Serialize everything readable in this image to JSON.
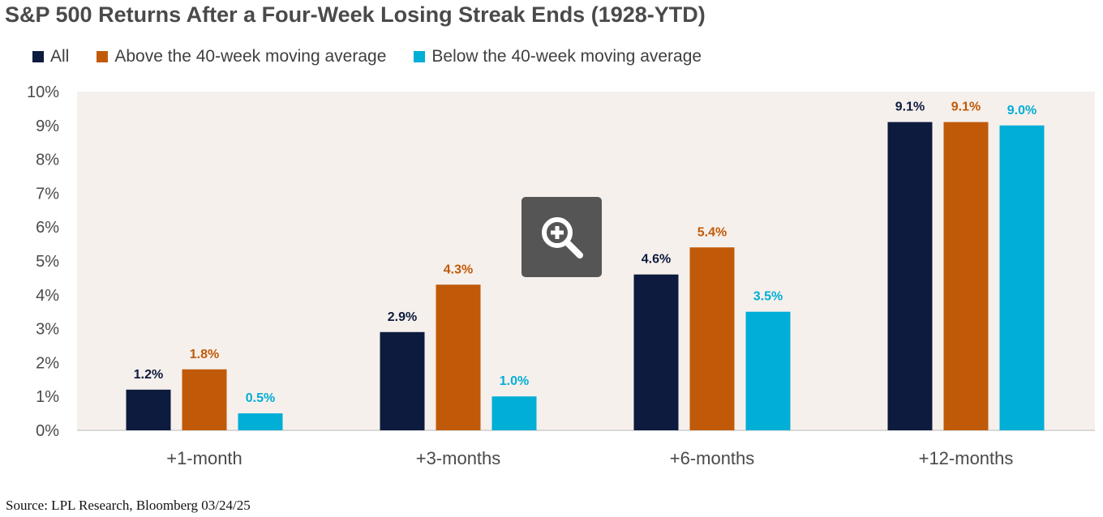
{
  "chart_data": {
    "type": "bar",
    "title": "S&P 500 Returns After a Four-Week Losing Streak Ends (1928-YTD)",
    "categories": [
      "+1-month",
      "+3-months",
      "+6-months",
      "+12-months"
    ],
    "series": [
      {
        "name": "All",
        "color": "#0d1b3e",
        "values": [
          1.2,
          2.9,
          4.6,
          9.1
        ],
        "labels": [
          "1.2%",
          "2.9%",
          "4.6%",
          "9.1%"
        ]
      },
      {
        "name": "Above the 40-week moving average",
        "color": "#c05a08",
        "values": [
          1.8,
          4.3,
          5.4,
          9.1
        ],
        "labels": [
          "1.8%",
          "4.3%",
          "5.4%",
          "9.1%"
        ]
      },
      {
        "name": "Below the 40-week moving average",
        "color": "#00aed6",
        "values": [
          0.5,
          1.0,
          3.5,
          9.0
        ],
        "labels": [
          "0.5%",
          "1.0%",
          "3.5%",
          "9.0%"
        ]
      }
    ],
    "yticks": [
      "0%",
      "1%",
      "2%",
      "3%",
      "4%",
      "5%",
      "6%",
      "7%",
      "8%",
      "9%",
      "10%"
    ],
    "ylim": [
      0,
      10
    ],
    "xlabel": "",
    "ylabel": "",
    "grid": false,
    "legend_position": "top-left",
    "plot_background": "#f6f0ec"
  },
  "source": "Source: LPL Research, Bloomberg 03/24/25",
  "zoom": {
    "icon": "zoom-in-icon"
  }
}
